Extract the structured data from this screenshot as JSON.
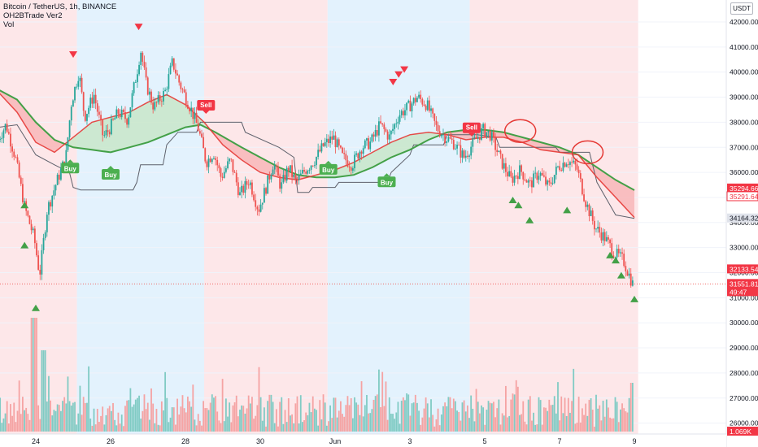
{
  "header": {
    "symbol_line": "Bitcoin / TetherUS, 1h, BINANCE",
    "indicator_1": "OH2BTrade Ver2",
    "indicator_2": "Vol",
    "currency_button": "USDT"
  },
  "chart_data": {
    "type": "candlestick",
    "symbol": "Bitcoin / TetherUS",
    "interval": "1h",
    "exchange": "BINANCE",
    "ylim": [
      25700,
      42700
    ],
    "y_ticks": [
      26000,
      27000,
      28000,
      29000,
      30000,
      31000,
      32000,
      33000,
      34000,
      35000,
      36000,
      37000,
      38000,
      39000,
      40000,
      41000,
      42000
    ],
    "y_tick_labels": [
      "26000.00",
      "27000.00",
      "28000.00",
      "29000.00",
      "30000.00",
      "31000.00",
      "32000.00",
      "33000.00",
      "34000.00",
      "35000.00",
      "36000.00",
      "37000.00",
      "38000.00",
      "39000.00",
      "40000.00",
      "41000.00",
      "42000.00"
    ],
    "x_ticks": [
      {
        "label": "24",
        "day": 24
      },
      {
        "label": "26",
        "day": 26
      },
      {
        "label": "28",
        "day": 28
      },
      {
        "label": "30",
        "day": 30
      },
      {
        "label": "Jun",
        "day": 32
      },
      {
        "label": "3",
        "day": 34
      },
      {
        "label": "5",
        "day": 36
      },
      {
        "label": "7",
        "day": 38
      },
      {
        "label": "9",
        "day": 40
      }
    ],
    "price_anchors": [
      [
        23.0,
        37200
      ],
      [
        23.25,
        37900
      ],
      [
        23.5,
        36600
      ],
      [
        23.75,
        34600
      ],
      [
        24.0,
        33400
      ],
      [
        24.15,
        31900
      ],
      [
        24.35,
        34500
      ],
      [
        24.6,
        35600
      ],
      [
        24.85,
        36600
      ],
      [
        25.0,
        38800
      ],
      [
        25.2,
        40000
      ],
      [
        25.35,
        38200
      ],
      [
        25.6,
        39100
      ],
      [
        25.85,
        37400
      ],
      [
        26.0,
        37700
      ],
      [
        26.25,
        38400
      ],
      [
        26.5,
        38100
      ],
      [
        26.75,
        40000
      ],
      [
        26.85,
        40900
      ],
      [
        27.0,
        39500
      ],
      [
        27.2,
        38600
      ],
      [
        27.5,
        39200
      ],
      [
        27.7,
        40400
      ],
      [
        27.9,
        39500
      ],
      [
        28.2,
        38500
      ],
      [
        28.4,
        37700
      ],
      [
        28.6,
        36400
      ],
      [
        28.8,
        36800
      ],
      [
        29.0,
        35800
      ],
      [
        29.25,
        36500
      ],
      [
        29.5,
        35100
      ],
      [
        29.75,
        35700
      ],
      [
        30.0,
        34500
      ],
      [
        30.2,
        35400
      ],
      [
        30.4,
        36400
      ],
      [
        30.6,
        35400
      ],
      [
        30.8,
        36200
      ],
      [
        31.0,
        35600
      ],
      [
        31.25,
        36100
      ],
      [
        31.5,
        36500
      ],
      [
        31.75,
        37100
      ],
      [
        32.0,
        37400
      ],
      [
        32.25,
        36600
      ],
      [
        32.5,
        36300
      ],
      [
        32.75,
        37000
      ],
      [
        33.0,
        37200
      ],
      [
        33.25,
        37900
      ],
      [
        33.5,
        37400
      ],
      [
        33.75,
        38300
      ],
      [
        34.0,
        38600
      ],
      [
        34.25,
        39000
      ],
      [
        34.5,
        38700
      ],
      [
        34.75,
        37800
      ],
      [
        35.0,
        37400
      ],
      [
        35.2,
        37200
      ],
      [
        35.5,
        36600
      ],
      [
        35.75,
        37200
      ],
      [
        36.0,
        37700
      ],
      [
        36.2,
        37500
      ],
      [
        36.5,
        36400
      ],
      [
        36.75,
        35700
      ],
      [
        37.0,
        36100
      ],
      [
        37.25,
        35500
      ],
      [
        37.5,
        36000
      ],
      [
        37.75,
        35400
      ],
      [
        38.0,
        36200
      ],
      [
        38.25,
        36500
      ],
      [
        38.5,
        36200
      ],
      [
        38.75,
        34800
      ],
      [
        39.0,
        33800
      ],
      [
        39.25,
        33400
      ],
      [
        39.5,
        32800
      ],
      [
        39.75,
        32500
      ],
      [
        40.0,
        31552
      ]
    ],
    "ema_fast": [
      [
        23.0,
        39200
      ],
      [
        23.5,
        38400
      ],
      [
        24.0,
        37200
      ],
      [
        24.5,
        36800
      ],
      [
        25.0,
        37400
      ],
      [
        25.5,
        38000
      ],
      [
        26.0,
        38200
      ],
      [
        26.5,
        38400
      ],
      [
        27.0,
        38800
      ],
      [
        27.5,
        39100
      ],
      [
        28.0,
        38700
      ],
      [
        28.5,
        38000
      ],
      [
        29.0,
        37100
      ],
      [
        29.5,
        36500
      ],
      [
        30.0,
        36000
      ],
      [
        30.5,
        35800
      ],
      [
        31.0,
        35700
      ],
      [
        31.5,
        35900
      ],
      [
        32.0,
        36100
      ],
      [
        32.5,
        36400
      ],
      [
        33.0,
        36800
      ],
      [
        33.5,
        37200
      ],
      [
        34.0,
        37500
      ],
      [
        34.5,
        37600
      ],
      [
        35.0,
        37500
      ],
      [
        35.5,
        37300
      ],
      [
        36.0,
        37400
      ],
      [
        36.5,
        37400
      ],
      [
        37.0,
        37200
      ],
      [
        37.5,
        36900
      ],
      [
        38.0,
        36800
      ],
      [
        38.5,
        36700
      ],
      [
        39.0,
        35800
      ],
      [
        39.5,
        35000
      ],
      [
        40.0,
        34200
      ]
    ],
    "ema_slow": [
      [
        23.0,
        39300
      ],
      [
        23.5,
        38900
      ],
      [
        24.0,
        38000
      ],
      [
        24.5,
        37300
      ],
      [
        25.0,
        37000
      ],
      [
        25.5,
        36900
      ],
      [
        26.0,
        36800
      ],
      [
        26.5,
        37000
      ],
      [
        27.0,
        37200
      ],
      [
        27.5,
        37500
      ],
      [
        28.0,
        37800
      ],
      [
        28.4,
        37900
      ],
      [
        28.8,
        37600
      ],
      [
        29.5,
        37000
      ],
      [
        30.0,
        36600
      ],
      [
        30.5,
        36200
      ],
      [
        31.0,
        35900
      ],
      [
        31.5,
        35800
      ],
      [
        32.0,
        35800
      ],
      [
        32.5,
        35900
      ],
      [
        33.0,
        36200
      ],
      [
        33.5,
        36600
      ],
      [
        34.0,
        36900
      ],
      [
        34.5,
        37300
      ],
      [
        35.0,
        37600
      ],
      [
        35.5,
        37700
      ],
      [
        36.0,
        37700
      ],
      [
        36.5,
        37600
      ],
      [
        37.0,
        37400
      ],
      [
        37.5,
        37200
      ],
      [
        38.0,
        37000
      ],
      [
        38.5,
        36700
      ],
      [
        39.0,
        36200
      ],
      [
        39.5,
        35700
      ],
      [
        40.0,
        35290
      ]
    ],
    "trail_line": [
      [
        23.0,
        37800
      ],
      [
        23.5,
        37900
      ],
      [
        24.0,
        36700
      ],
      [
        24.5,
        36300
      ],
      [
        24.9,
        36000
      ],
      [
        25.0,
        35400
      ],
      [
        25.2,
        35300
      ],
      [
        26.6,
        35300
      ],
      [
        26.7,
        35600
      ],
      [
        26.8,
        36300
      ],
      [
        27.4,
        36300
      ],
      [
        27.5,
        37100
      ],
      [
        27.8,
        37600
      ],
      [
        28.3,
        37600
      ],
      [
        28.4,
        38000
      ],
      [
        29.5,
        38000
      ],
      [
        29.6,
        37600
      ],
      [
        30.5,
        37000
      ],
      [
        30.9,
        36600
      ],
      [
        31.0,
        35200
      ],
      [
        31.3,
        35200
      ],
      [
        31.4,
        35400
      ],
      [
        32.0,
        35400
      ],
      [
        32.1,
        35600
      ],
      [
        33.4,
        35600
      ],
      [
        33.5,
        36000
      ],
      [
        34.0,
        36700
      ],
      [
        34.1,
        37100
      ],
      [
        34.9,
        37100
      ],
      [
        35.0,
        37500
      ],
      [
        35.8,
        37500
      ],
      [
        36.3,
        37400
      ],
      [
        36.4,
        37000
      ],
      [
        37.9,
        37000
      ],
      [
        38.0,
        36800
      ],
      [
        38.8,
        36800
      ],
      [
        39.0,
        35600
      ],
      [
        39.5,
        34300
      ],
      [
        40.0,
        34164
      ]
    ],
    "background_zones": [
      {
        "from": 23.0,
        "to": 25.1,
        "trend": "bearish",
        "color": "#fde7e9"
      },
      {
        "from": 25.1,
        "to": 28.5,
        "trend": "bullish",
        "color": "#e3f2fd"
      },
      {
        "from": 28.5,
        "to": 31.8,
        "trend": "bearish",
        "color": "#fde7e9"
      },
      {
        "from": 31.8,
        "to": 35.6,
        "trend": "bullish",
        "color": "#e3f2fd"
      },
      {
        "from": 35.6,
        "to": 40.1,
        "trend": "bearish",
        "color": "#fde7e9"
      }
    ],
    "signals": [
      {
        "type": "buy",
        "label": "Buy",
        "day": 24.92,
        "price": 36350
      },
      {
        "type": "buy",
        "label": "Buy",
        "day": 26.0,
        "price": 36100
      },
      {
        "type": "sell",
        "label": "Sell",
        "day": 28.55,
        "price": 38500
      },
      {
        "type": "buy",
        "label": "Buy",
        "day": 31.82,
        "price": 36300
      },
      {
        "type": "buy",
        "label": "Buy",
        "day": 33.38,
        "price": 35800
      },
      {
        "type": "sell",
        "label": "Sell",
        "day": 35.65,
        "price": 37600
      }
    ],
    "down_markers": [
      [
        25.0,
        40700
      ],
      [
        26.75,
        41800
      ],
      [
        33.55,
        39600
      ],
      [
        33.7,
        39900
      ],
      [
        33.85,
        40100
      ]
    ],
    "up_markers": [
      [
        23.7,
        34700
      ],
      [
        23.7,
        33100
      ],
      [
        24.0,
        30600
      ],
      [
        36.75,
        34900
      ],
      [
        36.9,
        34700
      ],
      [
        37.2,
        34100
      ],
      [
        38.2,
        34500
      ],
      [
        39.35,
        32700
      ],
      [
        39.5,
        32500
      ],
      [
        39.65,
        31900
      ],
      [
        40.0,
        30950
      ]
    ],
    "circles": [
      {
        "day": 36.95,
        "price": 37650
      },
      {
        "day": 38.75,
        "price": 36800
      }
    ],
    "price_labels": [
      {
        "text": "35294.66",
        "price": 35294.66,
        "bg": "#f23645",
        "fg": "#ffffff"
      },
      {
        "text": "35291.64",
        "price": 35291.64,
        "bg": "#ffffff",
        "fg": "#f23645",
        "border": "#f23645"
      },
      {
        "text": "34164.32",
        "price": 34164.32,
        "bg": "#e0e3eb",
        "fg": "#131722"
      },
      {
        "text": "32133.54",
        "price": 32133.54,
        "bg": "#f23645",
        "fg": "#ffffff"
      },
      {
        "text": "31551.81",
        "price": 31551.81,
        "bg": "#f23645",
        "fg": "#ffffff"
      },
      {
        "text": "49:47",
        "price": 31250,
        "bg": "#f23645",
        "fg": "#ffffff"
      },
      {
        "text": "1.069K",
        "price": 25800,
        "bg": "#f23645",
        "fg": "#ffffff"
      }
    ],
    "colors": {
      "up": "#26a69a",
      "down": "#ef5350",
      "ema_fast": "#e53935",
      "ema_slow": "#43a047",
      "trail": "#5d606b",
      "bull_fill": "#c8e6c9",
      "bear_fill": "#f8b6b8",
      "volume_up": "#80cbc4",
      "volume_down": "#f5a3a3",
      "signal_buy": "#4caf50",
      "signal_sell": "#f23645",
      "marker_up": "#43a047",
      "marker_down": "#f23645",
      "circle": "#e53935"
    }
  }
}
